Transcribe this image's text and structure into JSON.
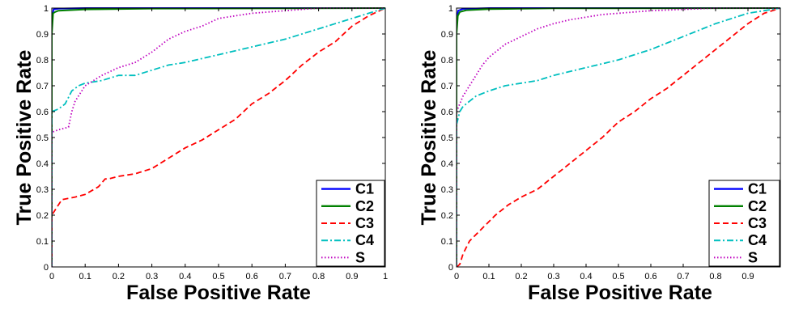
{
  "chart_data": [
    {
      "type": "line",
      "title": "",
      "xlabel": "False Positive Rate",
      "ylabel": "True Positive Rate",
      "xlim": [
        0,
        1
      ],
      "ylim": [
        0,
        1
      ],
      "xticks": [
        "0",
        "0.1",
        "0.2",
        "0.3",
        "0.4",
        "0.5",
        "0.6",
        "0.7",
        "0.8",
        "0.9",
        "1"
      ],
      "yticks": [
        "0",
        "0.1",
        "0.2",
        "0.3",
        "0.4",
        "0.5",
        "0.6",
        "0.7",
        "0.8",
        "0.9",
        "1"
      ],
      "grid": false,
      "legend_position": "bottom-right",
      "series": [
        {
          "name": "C1",
          "color": "#0000ff",
          "style": "solid",
          "x": [
            0,
            0,
            0.005,
            0.02,
            0.1,
            0.5,
            1.0
          ],
          "y": [
            0,
            0.95,
            0.995,
            0.998,
            1.0,
            1.0,
            1.0
          ]
        },
        {
          "name": "C2",
          "color": "#008000",
          "style": "solid",
          "x": [
            0,
            0,
            0.004,
            0.01,
            0.02,
            0.05,
            0.1,
            0.3,
            1.0
          ],
          "y": [
            0,
            0.9,
            0.98,
            0.985,
            0.99,
            0.992,
            0.995,
            0.998,
            1.0
          ]
        },
        {
          "name": "C3",
          "color": "#ff0000",
          "style": "dashed",
          "x": [
            0,
            0,
            0.01,
            0.03,
            0.07,
            0.1,
            0.14,
            0.16,
            0.17,
            0.2,
            0.25,
            0.3,
            0.35,
            0.4,
            0.45,
            0.5,
            0.55,
            0.6,
            0.65,
            0.7,
            0.75,
            0.8,
            0.85,
            0.9,
            0.95,
            1.0
          ],
          "y": [
            0,
            0.2,
            0.22,
            0.26,
            0.27,
            0.28,
            0.31,
            0.34,
            0.34,
            0.35,
            0.36,
            0.38,
            0.42,
            0.46,
            0.49,
            0.53,
            0.57,
            0.63,
            0.67,
            0.72,
            0.78,
            0.83,
            0.87,
            0.93,
            0.97,
            1.0
          ]
        },
        {
          "name": "C4",
          "color": "#00bfbf",
          "style": "dashdot",
          "x": [
            0,
            0,
            0.02,
            0.04,
            0.06,
            0.08,
            0.1,
            0.15,
            0.2,
            0.25,
            0.3,
            0.35,
            0.4,
            0.5,
            0.6,
            0.7,
            0.8,
            0.85,
            0.9,
            0.95,
            1.0
          ],
          "y": [
            0,
            0.6,
            0.61,
            0.63,
            0.68,
            0.7,
            0.71,
            0.72,
            0.74,
            0.74,
            0.76,
            0.78,
            0.79,
            0.82,
            0.85,
            0.88,
            0.92,
            0.94,
            0.96,
            0.98,
            1.0
          ]
        },
        {
          "name": "S",
          "color": "#bf00bf",
          "style": "dotted",
          "x": [
            0,
            0,
            0.02,
            0.05,
            0.06,
            0.07,
            0.1,
            0.15,
            0.2,
            0.25,
            0.3,
            0.35,
            0.4,
            0.45,
            0.5,
            0.55,
            0.6,
            0.7,
            0.8,
            0.9,
            1.0
          ],
          "y": [
            0,
            0.52,
            0.53,
            0.54,
            0.6,
            0.64,
            0.7,
            0.74,
            0.77,
            0.79,
            0.83,
            0.88,
            0.91,
            0.93,
            0.96,
            0.97,
            0.98,
            0.99,
            1.0,
            1.0,
            1.0
          ]
        }
      ]
    },
    {
      "type": "line",
      "title": "",
      "xlabel": "False Positive Rate",
      "ylabel": "True Positive Rate",
      "xlim": [
        0,
        1
      ],
      "ylim": [
        0,
        1
      ],
      "xticks": [
        "0",
        "0.1",
        "0.2",
        "0.3",
        "0.4",
        "0.5",
        "0.6",
        "0.7",
        "0.8",
        "0.9"
      ],
      "yticks": [
        "0",
        "0.1",
        "0.2",
        "0.3",
        "0.4",
        "0.5",
        "0.6",
        "0.7",
        "0.8",
        "0.9",
        "1"
      ],
      "grid": false,
      "legend_position": "bottom-right",
      "series": [
        {
          "name": "C1",
          "color": "#0000ff",
          "style": "solid",
          "x": [
            0,
            0,
            0.005,
            0.02,
            0.1,
            0.5,
            1.0
          ],
          "y": [
            0,
            0.95,
            0.99,
            0.997,
            1.0,
            1.0,
            1.0
          ]
        },
        {
          "name": "C2",
          "color": "#008000",
          "style": "solid",
          "x": [
            0,
            0,
            0.004,
            0.01,
            0.03,
            0.1,
            0.3,
            1.0
          ],
          "y": [
            0,
            0.9,
            0.97,
            0.985,
            0.992,
            0.996,
            0.999,
            1.0
          ]
        },
        {
          "name": "C3",
          "color": "#ff0000",
          "style": "dashed",
          "x": [
            0,
            0.01,
            0.02,
            0.04,
            0.08,
            0.12,
            0.16,
            0.2,
            0.25,
            0.3,
            0.35,
            0.4,
            0.45,
            0.5,
            0.55,
            0.6,
            0.65,
            0.7,
            0.75,
            0.8,
            0.85,
            0.9,
            0.95,
            1.0
          ],
          "y": [
            0,
            0.01,
            0.05,
            0.1,
            0.15,
            0.2,
            0.24,
            0.27,
            0.3,
            0.35,
            0.4,
            0.45,
            0.5,
            0.56,
            0.6,
            0.65,
            0.69,
            0.74,
            0.79,
            0.84,
            0.89,
            0.94,
            0.98,
            1.0
          ]
        },
        {
          "name": "C4",
          "color": "#00bfbf",
          "style": "dashdot",
          "x": [
            0,
            0,
            0.01,
            0.02,
            0.04,
            0.06,
            0.1,
            0.15,
            0.2,
            0.25,
            0.3,
            0.4,
            0.5,
            0.6,
            0.7,
            0.8,
            0.85,
            0.9,
            0.95,
            1.0
          ],
          "y": [
            0,
            0.55,
            0.6,
            0.62,
            0.64,
            0.66,
            0.68,
            0.7,
            0.71,
            0.72,
            0.74,
            0.77,
            0.8,
            0.84,
            0.89,
            0.94,
            0.96,
            0.98,
            0.99,
            1.0
          ]
        },
        {
          "name": "S",
          "color": "#bf00bf",
          "style": "dotted",
          "x": [
            0,
            0,
            0.01,
            0.02,
            0.04,
            0.06,
            0.08,
            0.1,
            0.15,
            0.2,
            0.25,
            0.3,
            0.35,
            0.4,
            0.45,
            0.5,
            0.55,
            0.6,
            0.7,
            0.8,
            0.9,
            1.0
          ],
          "y": [
            0,
            0.6,
            0.63,
            0.66,
            0.7,
            0.74,
            0.78,
            0.81,
            0.86,
            0.89,
            0.92,
            0.94,
            0.955,
            0.965,
            0.975,
            0.98,
            0.985,
            0.99,
            0.995,
            1.0,
            1.0,
            1.0
          ]
        }
      ]
    }
  ]
}
